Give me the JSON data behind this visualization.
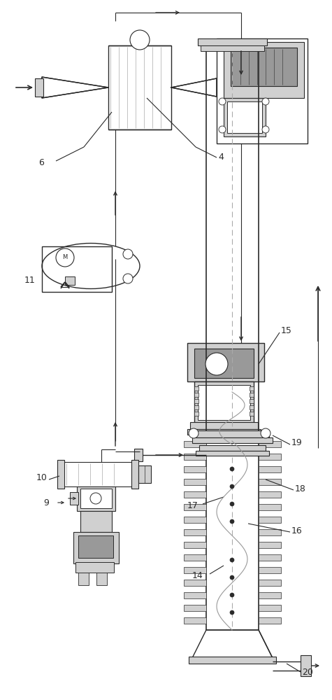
{
  "bg_color": "#ffffff",
  "lc": "#2a2a2a",
  "gc": "#aaaaaa",
  "lgc": "#d0d0d0",
  "mgc": "#999999",
  "dgc": "#666666"
}
